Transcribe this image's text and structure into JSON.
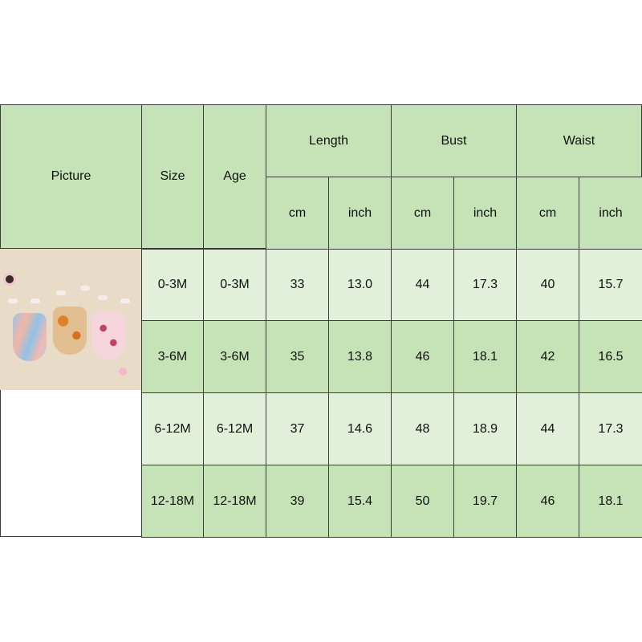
{
  "headers": {
    "picture": "Picture",
    "size": "Size",
    "age": "Age",
    "length": "Length",
    "bust": "Bust",
    "waist": "Waist",
    "cm": "cm",
    "inch": "inch"
  },
  "rows": [
    {
      "size": "0-3M",
      "age": "0-3M",
      "length_cm": "33",
      "length_in": "13.0",
      "bust_cm": "44",
      "bust_in": "17.3",
      "waist_cm": "40",
      "waist_in": "15.7"
    },
    {
      "size": "3-6M",
      "age": "3-6M",
      "length_cm": "35",
      "length_in": "13.8",
      "bust_cm": "46",
      "bust_in": "18.1",
      "waist_cm": "42",
      "waist_in": "16.5"
    },
    {
      "size": "6-12M",
      "age": "6-12M",
      "length_cm": "37",
      "length_in": "14.6",
      "bust_cm": "48",
      "bust_in": "18.9",
      "waist_cm": "44",
      "waist_in": "17.3"
    },
    {
      "size": "12-18M",
      "age": "12-18M",
      "length_cm": "39",
      "length_in": "15.4",
      "bust_cm": "50",
      "bust_in": "19.7",
      "waist_cm": "46",
      "waist_in": "18.1"
    }
  ],
  "colors": {
    "header": "#c6e3b8",
    "row_light": "#e2f0da",
    "row_dark": "#c6e3b8",
    "border": "#3a3a3a"
  }
}
